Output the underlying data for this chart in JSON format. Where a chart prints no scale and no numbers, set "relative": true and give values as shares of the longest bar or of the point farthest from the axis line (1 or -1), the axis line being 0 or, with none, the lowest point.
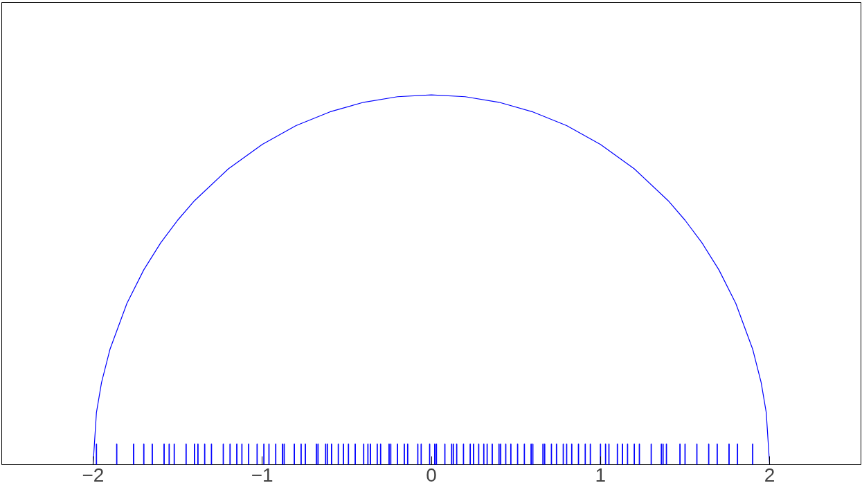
{
  "chart_data": {
    "type": "line",
    "relative": true,
    "xlim": [
      -2.54,
      2.54
    ],
    "xticks": [
      -2,
      -1,
      0,
      1,
      2
    ],
    "grid": false,
    "series": [
      {
        "color": "#0000ff",
        "x": [
          -2,
          -1.98,
          -1.95,
          -1.9,
          -1.8,
          -1.7,
          -1.6,
          -1.5,
          -1.4,
          -1.2,
          -1.0,
          -0.8,
          -0.6,
          -0.4,
          -0.2,
          0,
          0.2,
          0.4,
          0.6,
          0.8,
          1.0,
          1.2,
          1.4,
          1.5,
          1.6,
          1.7,
          1.8,
          1.9,
          1.95,
          1.98,
          2
        ],
        "values": [
          0,
          0.141,
          0.222,
          0.312,
          0.436,
          0.527,
          0.6,
          0.661,
          0.714,
          0.8,
          0.866,
          0.917,
          0.954,
          0.98,
          0.995,
          1,
          0.995,
          0.98,
          0.954,
          0.917,
          0.866,
          0.8,
          0.714,
          0.661,
          0.6,
          0.527,
          0.436,
          0.312,
          0.222,
          0.141,
          0
        ]
      },
      {
        "type": "bar",
        "color": "#0000ff",
        "x": [
          -1.98,
          -1.86,
          -1.76,
          -1.7,
          -1.65,
          -1.58,
          -1.55,
          -1.52,
          -1.45,
          -1.4,
          -1.38,
          -1.34,
          -1.3,
          -1.23,
          -1.19,
          -1.15,
          -1.12,
          -1.08,
          -1.03,
          -0.99,
          -0.96,
          -0.92,
          -0.88,
          -0.87,
          -0.81,
          -0.77,
          -0.745,
          -0.68,
          -0.67,
          -0.625,
          -0.615,
          -0.59,
          -0.55,
          -0.52,
          -0.49,
          -0.45,
          -0.4,
          -0.375,
          -0.36,
          -0.32,
          -0.3,
          -0.25,
          -0.24,
          -0.2,
          -0.16,
          -0.14,
          -0.08,
          -0.06,
          -0.01,
          0.02,
          0.03,
          0.08,
          0.12,
          0.13,
          0.15,
          0.19,
          0.23,
          0.25,
          0.28,
          0.31,
          0.33,
          0.36,
          0.4,
          0.41,
          0.44,
          0.47,
          0.51,
          0.55,
          0.59,
          0.6,
          0.66,
          0.67,
          0.71,
          0.74,
          0.78,
          0.8,
          0.83,
          0.87,
          0.91,
          0.94,
          1.0,
          1.03,
          1.05,
          1.1,
          1.13,
          1.16,
          1.2,
          1.23,
          1.3,
          1.36,
          1.37,
          1.39,
          1.47,
          1.5,
          1.57,
          1.64,
          1.69,
          1.76,
          1.81,
          1.9
        ],
        "values": [
          0.056,
          0.056,
          0.056,
          0.056,
          0.056,
          0.056,
          0.056,
          0.056,
          0.056,
          0.056,
          0.056,
          0.056,
          0.056,
          0.056,
          0.056,
          0.056,
          0.056,
          0.056,
          0.056,
          0.056,
          0.056,
          0.056,
          0.056,
          0.056,
          0.056,
          0.056,
          0.056,
          0.056,
          0.056,
          0.056,
          0.056,
          0.056,
          0.056,
          0.056,
          0.056,
          0.056,
          0.056,
          0.056,
          0.056,
          0.056,
          0.056,
          0.056,
          0.056,
          0.056,
          0.056,
          0.056,
          0.056,
          0.056,
          0.056,
          0.056,
          0.056,
          0.056,
          0.056,
          0.056,
          0.056,
          0.056,
          0.056,
          0.056,
          0.056,
          0.056,
          0.056,
          0.056,
          0.056,
          0.056,
          0.056,
          0.056,
          0.056,
          0.056,
          0.056,
          0.056,
          0.056,
          0.056,
          0.056,
          0.056,
          0.056,
          0.056,
          0.056,
          0.056,
          0.056,
          0.056,
          0.056,
          0.056,
          0.056,
          0.056,
          0.056,
          0.056,
          0.056,
          0.056,
          0.056,
          0.056,
          0.056,
          0.056,
          0.056,
          0.056,
          0.056,
          0.056,
          0.056,
          0.056,
          0.056,
          0.056
        ]
      }
    ]
  }
}
